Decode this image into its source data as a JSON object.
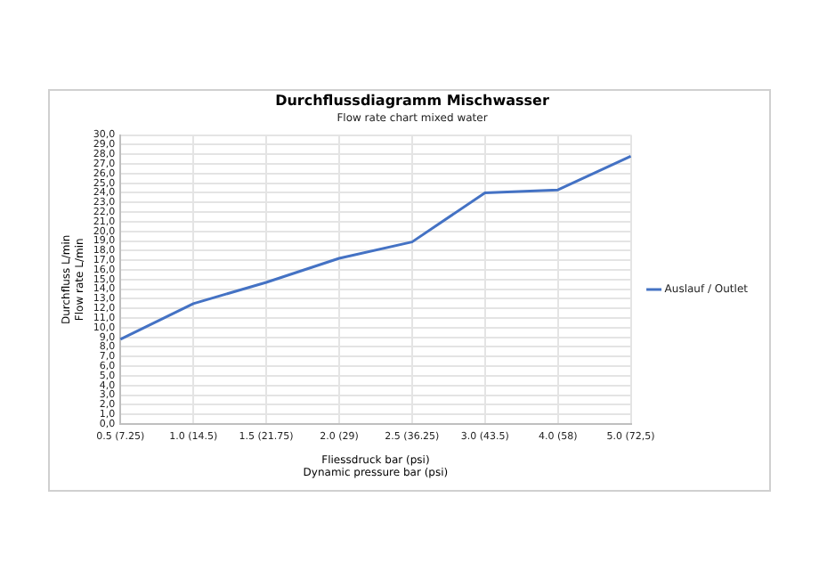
{
  "chart_data": {
    "type": "line",
    "title": "Durchflussdiagramm Mischwasser",
    "subtitle": "Flow rate chart mixed water",
    "xlabel": "Fliessdruck bar (psi)\nDynamic pressure bar (psi)",
    "ylabel": "Durchfluss L/min\nFlow rate L/min",
    "categories": [
      "0.5 (7.25)",
      "1.0 (14.5)",
      "1.5 (21.75)",
      "2.0 (29)",
      "2.5 (36.25)",
      "3.0 (43.5)",
      "4.0 (58)",
      "5.0 (72,5)"
    ],
    "series": [
      {
        "name": "Auslauf / Outlet",
        "color": "#4472c4",
        "values": [
          8.8,
          12.5,
          14.7,
          17.2,
          18.9,
          24.0,
          24.3,
          27.8
        ]
      }
    ],
    "ylim": [
      0,
      30
    ],
    "yticks": [
      {
        "value": 0,
        "label": "0,0"
      },
      {
        "value": 1,
        "label": "1,0"
      },
      {
        "value": 2,
        "label": "2,0"
      },
      {
        "value": 3,
        "label": "3,0"
      },
      {
        "value": 4,
        "label": "4,0"
      },
      {
        "value": 5,
        "label": "5,0"
      },
      {
        "value": 6,
        "label": "6,0"
      },
      {
        "value": 7,
        "label": "7,0"
      },
      {
        "value": 8,
        "label": "8,0"
      },
      {
        "value": 9,
        "label": "9,0"
      },
      {
        "value": 10,
        "label": "10,0"
      },
      {
        "value": 11,
        "label": "11,0"
      },
      {
        "value": 12,
        "label": "12,0"
      },
      {
        "value": 13,
        "label": "13,0"
      },
      {
        "value": 14,
        "label": "14,0"
      },
      {
        "value": 15,
        "label": "15,0"
      },
      {
        "value": 16,
        "label": "16,0"
      },
      {
        "value": 17,
        "label": "17,0"
      },
      {
        "value": 18,
        "label": "18,0"
      },
      {
        "value": 19,
        "label": "19,0"
      },
      {
        "value": 20,
        "label": "20,0"
      },
      {
        "value": 21,
        "label": "21,0"
      },
      {
        "value": 22,
        "label": "22,0"
      },
      {
        "value": 23,
        "label": "23,0"
      },
      {
        "value": 24,
        "label": "24,0"
      },
      {
        "value": 25,
        "label": "25,0"
      },
      {
        "value": 26,
        "label": "26,0"
      },
      {
        "value": 27,
        "label": "27,0"
      },
      {
        "value": 28,
        "label": "28,0"
      },
      {
        "value": 29,
        "label": "29,0"
      },
      {
        "value": 30,
        "label": "30,0"
      }
    ],
    "grid": true,
    "legend": "right",
    "marker": "none",
    "line_style": "solid"
  }
}
